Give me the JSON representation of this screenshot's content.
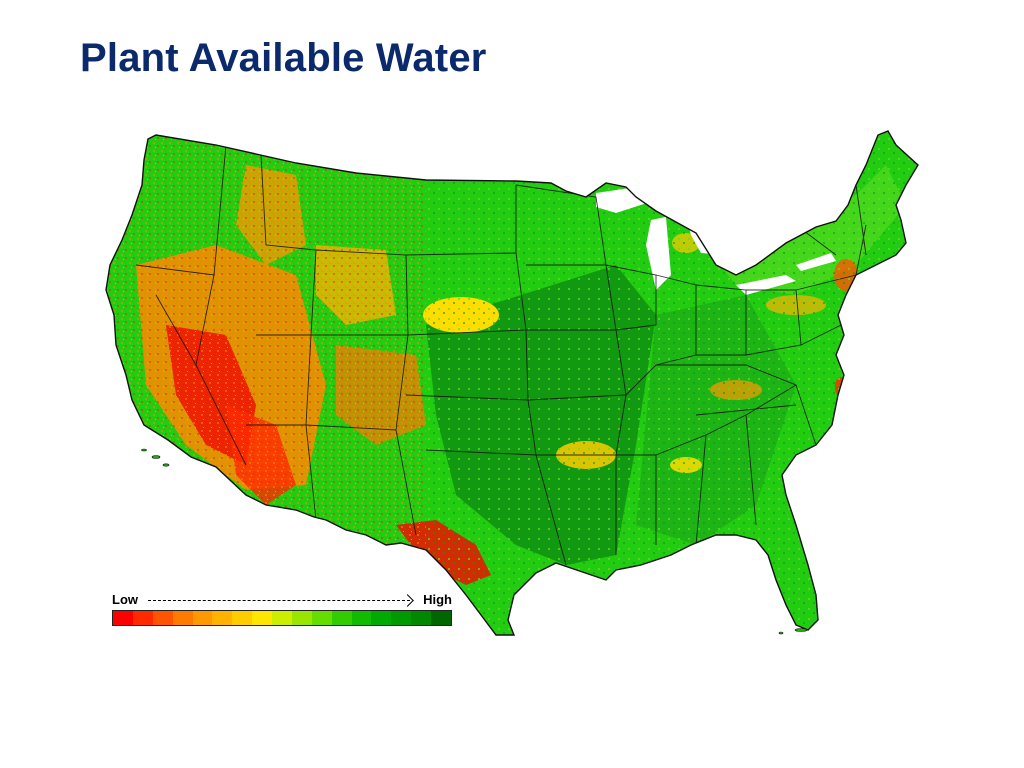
{
  "title": "Plant Available Water",
  "legend": {
    "low_label": "Low",
    "high_label": "High",
    "scale_colors": [
      "#ff0000",
      "#ff2a00",
      "#ff5500",
      "#ff7a00",
      "#ff9900",
      "#ffb300",
      "#ffcc00",
      "#ffe600",
      "#ccee00",
      "#99e600",
      "#66dd00",
      "#33cc00",
      "#11bb00",
      "#00aa00",
      "#009900",
      "#008800",
      "#006600"
    ]
  },
  "map": {
    "region": "contiguous-united-states",
    "palette": {
      "base": "#22cc11",
      "dark_green": "#119911",
      "light_green": "#66dd22",
      "yellow": "#ffdd00",
      "orange": "#ff8800",
      "red": "#ee1100",
      "border": "#111111",
      "water": "#ffffff"
    }
  }
}
